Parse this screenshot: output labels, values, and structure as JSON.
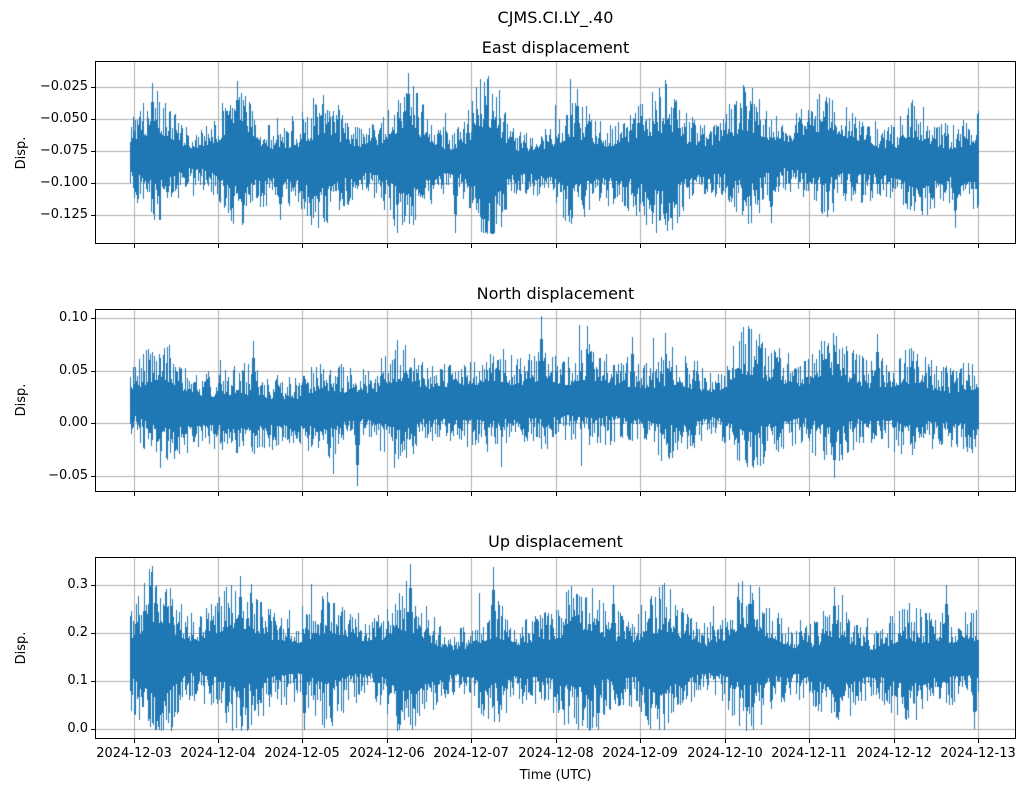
{
  "figure": {
    "suptitle": "CJMS.CI.LY_.40",
    "xlabel": "Time (UTC)",
    "background_color": "#ffffff",
    "line_color": "#1f77b4",
    "grid_color": "#b0b0b0",
    "axis_color": "#000000",
    "x_tick_labels": [
      "2024-12-03",
      "2024-12-04",
      "2024-12-05",
      "2024-12-06",
      "2024-12-07",
      "2024-12-08",
      "2024-12-09",
      "2024-12-10",
      "2024-12-11",
      "2024-12-12",
      "2024-12-13"
    ],
    "x_range_days_rel_2024_12_03": [
      -0.04,
      10.0
    ]
  },
  "chart_data": [
    {
      "type": "line",
      "title": "East displacement",
      "ylabel": "Disp.",
      "grid": true,
      "legend": false,
      "ylim": [
        -0.1466,
        -0.0053
      ],
      "yticks": [
        {
          "value": -0.025,
          "label": "−0.025"
        },
        {
          "value": -0.05,
          "label": "−0.050"
        },
        {
          "value": -0.075,
          "label": "−0.075"
        },
        {
          "value": -0.1,
          "label": "−0.100"
        },
        {
          "value": -0.125,
          "label": "−0.125"
        }
      ],
      "series": {
        "name": "East",
        "approx_mean": -0.0805,
        "core_band": [
          -0.102,
          -0.058
        ],
        "observed_min": -0.139,
        "observed_max": -0.014,
        "burst_period_days": 1.0,
        "extremes": [
          {
            "t_days": 0.22,
            "value": -0.022
          },
          {
            "t_days": 1.22,
            "value": -0.02
          },
          {
            "t_days": 3.25,
            "value": -0.014
          },
          {
            "t_days": 5.25,
            "value": -0.026
          },
          {
            "t_days": 1.73,
            "value": -0.128
          },
          {
            "t_days": 3.81,
            "value": -0.139
          },
          {
            "t_days": 7.55,
            "value": -0.131
          },
          {
            "t_days": 9.73,
            "value": -0.135
          }
        ]
      },
      "gen": {
        "seed": 101,
        "amp_up": 0.032,
        "amp_dn": 0.032,
        "wander": 0.0045,
        "diurnal_weight": 1.05,
        "diurnal_phase": 0.22,
        "spike_p": 0.02
      }
    },
    {
      "type": "line",
      "title": "North displacement",
      "ylabel": "Disp.",
      "grid": true,
      "legend": false,
      "ylim": [
        -0.0645,
        0.1077
      ],
      "yticks": [
        {
          "value": 0.1,
          "label": "0.10"
        },
        {
          "value": 0.05,
          "label": "0.05"
        },
        {
          "value": 0.0,
          "label": "0.00"
        },
        {
          "value": -0.05,
          "label": "−0.05"
        }
      ],
      "series": {
        "name": "North",
        "approx_mean": 0.016,
        "core_band": [
          -0.012,
          0.048
        ],
        "observed_min": -0.059,
        "observed_max": 0.102,
        "burst_period_days": 1.0,
        "extremes": [
          {
            "t_days": 1.42,
            "value": 0.078
          },
          {
            "t_days": 4.82,
            "value": 0.102
          },
          {
            "t_days": 5.9,
            "value": 0.082
          },
          {
            "t_days": 8.8,
            "value": 0.085
          },
          {
            "t_days": 2.65,
            "value": -0.059
          },
          {
            "t_days": 8.3,
            "value": -0.052
          }
        ]
      },
      "gen": {
        "seed": 202,
        "amp_up": 0.047,
        "amp_dn": 0.042,
        "wander": 0.006,
        "diurnal_weight": 0.55,
        "diurnal_phase": 0.25,
        "spike_p": 0.02
      }
    },
    {
      "type": "line",
      "title": "Up displacement",
      "ylabel": "Disp.",
      "grid": true,
      "legend": false,
      "ylim": [
        -0.0197,
        0.3566
      ],
      "yticks": [
        {
          "value": 0.3,
          "label": "0.3"
        },
        {
          "value": 0.2,
          "label": "0.2"
        },
        {
          "value": 0.1,
          "label": "0.1"
        },
        {
          "value": 0.0,
          "label": "0.0"
        }
      ],
      "series": {
        "name": "Up",
        "approx_mean": 0.142,
        "core_band": [
          0.075,
          0.21
        ],
        "observed_min": -0.004,
        "observed_max": 0.345,
        "burst_period_days": 1.0,
        "extremes": [
          {
            "t_days": 0.27,
            "value": 0.3
          },
          {
            "t_days": 1.26,
            "value": 0.32
          },
          {
            "t_days": 3.28,
            "value": 0.345
          },
          {
            "t_days": 4.26,
            "value": 0.338
          },
          {
            "t_days": 5.68,
            "value": 0.3
          },
          {
            "t_days": 7.3,
            "value": 0.3
          },
          {
            "t_days": 8.3,
            "value": 0.295
          },
          {
            "t_days": 9.62,
            "value": 0.3
          },
          {
            "t_days": 2.02,
            "value": -0.003
          },
          {
            "t_days": 5.5,
            "value": -0.004
          },
          {
            "t_days": 9.95,
            "value": -0.001
          }
        ]
      },
      "gen": {
        "seed": 303,
        "amp_up": 0.094,
        "amp_dn": 0.096,
        "wander": 0.014,
        "diurnal_weight": 1.0,
        "diurnal_phase": 0.27,
        "spike_p": 0.03
      }
    }
  ]
}
